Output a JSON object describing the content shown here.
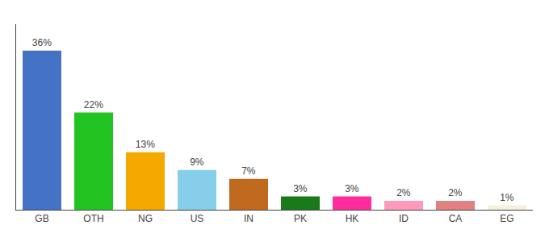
{
  "chart_data": {
    "type": "bar",
    "categories": [
      "GB",
      "OTH",
      "NG",
      "US",
      "IN",
      "PK",
      "HK",
      "ID",
      "CA",
      "EG"
    ],
    "values": [
      36,
      22,
      13,
      9,
      7,
      3,
      3,
      2,
      2,
      1
    ],
    "value_labels": [
      "36%",
      "22%",
      "13%",
      "9%",
      "7%",
      "3%",
      "3%",
      "2%",
      "2%",
      "1%"
    ],
    "data_labels": true,
    "colors": [
      "#4472c4",
      "#22c422",
      "#f5a800",
      "#87ceeb",
      "#c06a20",
      "#1a7a1a",
      "#ff2d9b",
      "#ff9abb",
      "#e08080",
      "#f5f0dc"
    ],
    "ylim": [
      0,
      42
    ],
    "grid": false,
    "tick_labels": "x"
  }
}
